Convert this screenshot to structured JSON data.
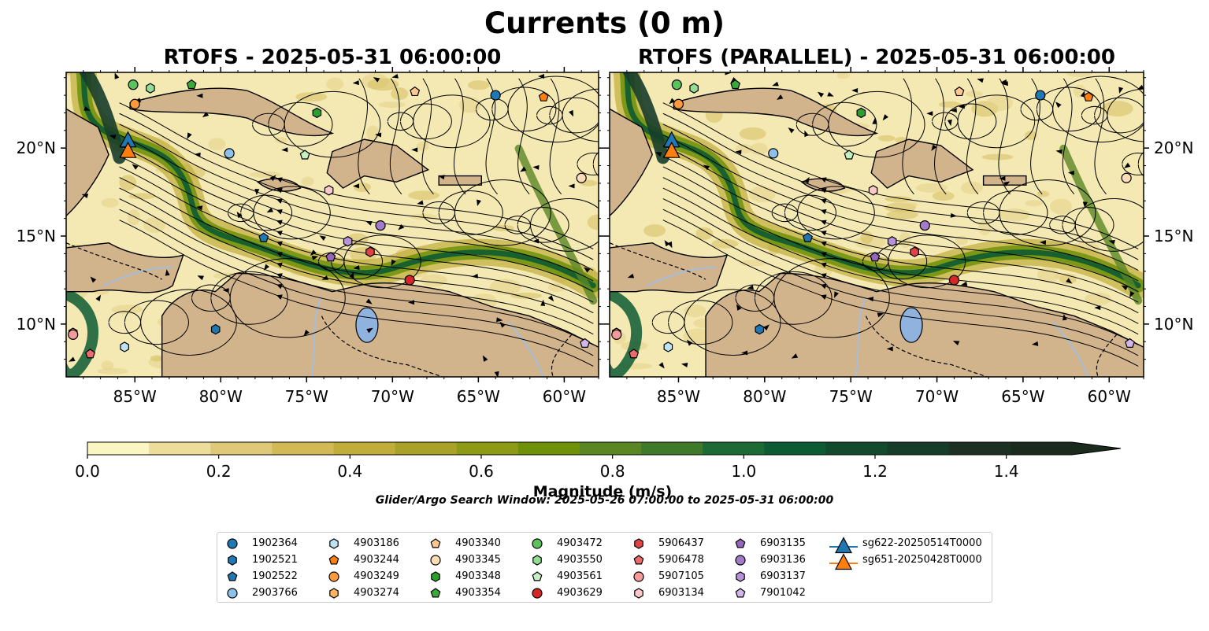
{
  "title": "Currents (0 m)",
  "panels": [
    {
      "title": "RTOFS - 2025-05-31 06:00:00"
    },
    {
      "title": "RTOFS (PARALLEL) - 2025-05-31 06:00:00"
    }
  ],
  "map": {
    "extent": {
      "lon": [
        -89.0,
        -58.0
      ],
      "lat": [
        7.0,
        24.3
      ]
    },
    "lon_ticks": [
      {
        "value": -85,
        "label": "85°W"
      },
      {
        "value": -80,
        "label": "80°W"
      },
      {
        "value": -75,
        "label": "75°W"
      },
      {
        "value": -70,
        "label": "70°W"
      },
      {
        "value": -65,
        "label": "65°W"
      },
      {
        "value": -60,
        "label": "60°W"
      }
    ],
    "lat_ticks": [
      {
        "value": 20,
        "label": "20°N"
      },
      {
        "value": 15,
        "label": "15°N"
      },
      {
        "value": 10,
        "label": "10°N"
      }
    ],
    "colors": {
      "land": "#d2b48c",
      "water_bg": "#f4e9b2",
      "lake": "#8fb3de",
      "river": "#a6bddb"
    }
  },
  "colorbar": {
    "label": "Magnitude (m/s)",
    "range": [
      0.0,
      1.5
    ],
    "extend": "max",
    "ticks": [
      "0.0",
      "0.2",
      "0.4",
      "0.6",
      "0.8",
      "1.0",
      "1.2",
      "1.4"
    ],
    "colors": [
      "#fbf5c1",
      "#ecde9a",
      "#dfc979",
      "#d3b856",
      "#c1ad3a",
      "#a9a128",
      "#8d9a13",
      "#6f9009",
      "#5a8624",
      "#3f7a2a",
      "#1c6b35",
      "#0d5b32",
      "#124a2d",
      "#163d2a",
      "#1c3024",
      "#1a2a1c"
    ]
  },
  "search_window": "Glider/Argo Search Window: 2025-05-26 07:00:00 to 2025-05-31 06:00:00",
  "legend": [
    {
      "label": "1902364",
      "marker": "circle",
      "color": "#1f77b4"
    },
    {
      "label": "1902521",
      "marker": "hexagon",
      "color": "#1f77b4"
    },
    {
      "label": "1902522",
      "marker": "pentagon",
      "color": "#1f77b4"
    },
    {
      "label": "2903766",
      "marker": "circle",
      "color": "#8dc1e8"
    },
    {
      "label": "4903186",
      "marker": "hexagon",
      "color": "#bfe2f6"
    },
    {
      "label": "4903244",
      "marker": "pentagon",
      "color": "#ff7f0e"
    },
    {
      "label": "4903249",
      "marker": "circle",
      "color": "#ff9a3c"
    },
    {
      "label": "4903274",
      "marker": "hexagon",
      "color": "#ffb266"
    },
    {
      "label": "4903340",
      "marker": "pentagon",
      "color": "#ffc890"
    },
    {
      "label": "4903345",
      "marker": "circle",
      "color": "#ffdcb8"
    },
    {
      "label": "4903348",
      "marker": "hexagon",
      "color": "#2ca02c"
    },
    {
      "label": "4903354",
      "marker": "pentagon",
      "color": "#3aa93a"
    },
    {
      "label": "4903472",
      "marker": "circle",
      "color": "#5cc35c"
    },
    {
      "label": "4903550",
      "marker": "hexagon",
      "color": "#95dc95"
    },
    {
      "label": "4903561",
      "marker": "pentagon",
      "color": "#c4f0c4"
    },
    {
      "label": "4903629",
      "marker": "circle",
      "color": "#d62728"
    },
    {
      "label": "5906437",
      "marker": "hexagon",
      "color": "#e04344"
    },
    {
      "label": "5906478",
      "marker": "pentagon",
      "color": "#eb6b6c"
    },
    {
      "label": "5907105",
      "marker": "circle",
      "color": "#f49a9a"
    },
    {
      "label": "6903134",
      "marker": "hexagon",
      "color": "#fcc8c8"
    },
    {
      "label": "6903135",
      "marker": "pentagon",
      "color": "#9467bd"
    },
    {
      "label": "6903136",
      "marker": "circle",
      "color": "#a27bcb"
    },
    {
      "label": "6903137",
      "marker": "hexagon",
      "color": "#b792d8"
    },
    {
      "label": "7901042",
      "marker": "pentagon",
      "color": "#d3b6ec"
    },
    {
      "label": "sg622-20250514T0000",
      "marker": "triangle",
      "color": "#1f77b4"
    },
    {
      "label": "sg651-20250428T0000",
      "marker": "triangle",
      "color": "#ff7f0e"
    }
  ],
  "markers": [
    {
      "id": "1902364",
      "lon": -64.0,
      "lat": 23.0
    },
    {
      "id": "1902521",
      "lon": -80.3,
      "lat": 9.7
    },
    {
      "id": "1902522",
      "lon": -77.5,
      "lat": 14.9
    },
    {
      "id": "2903766",
      "lon": -79.5,
      "lat": 19.7
    },
    {
      "id": "4903186",
      "lon": -85.6,
      "lat": 8.7
    },
    {
      "id": "4903244",
      "lon": -61.2,
      "lat": 22.9
    },
    {
      "id": "4903249",
      "lon": -85.0,
      "lat": 22.5
    },
    {
      "id": "4903274",
      "lon": -88.6,
      "lat": 9.5
    },
    {
      "id": "4903340",
      "lon": -68.7,
      "lat": 23.2
    },
    {
      "id": "4903345",
      "lon": -59.0,
      "lat": 18.3
    },
    {
      "id": "4903348",
      "lon": -74.4,
      "lat": 22.0
    },
    {
      "id": "4903354",
      "lon": -81.7,
      "lat": 23.6
    },
    {
      "id": "4903472",
      "lon": -85.1,
      "lat": 23.6
    },
    {
      "id": "4903550",
      "lon": -84.1,
      "lat": 23.4
    },
    {
      "id": "4903561",
      "lon": -75.1,
      "lat": 19.6
    },
    {
      "id": "4903629",
      "lon": -69.0,
      "lat": 12.5
    },
    {
      "id": "5906437",
      "lon": -71.3,
      "lat": 14.1
    },
    {
      "id": "5906478",
      "lon": -87.6,
      "lat": 8.3
    },
    {
      "id": "5907105",
      "lon": -88.6,
      "lat": 9.4
    },
    {
      "id": "6903134",
      "lon": -73.7,
      "lat": 17.6
    },
    {
      "id": "6903135",
      "lon": -73.6,
      "lat": 13.8
    },
    {
      "id": "6903136",
      "lon": -70.7,
      "lat": 15.6
    },
    {
      "id": "6903137",
      "lon": -72.6,
      "lat": 14.7
    },
    {
      "id": "7901042",
      "lon": -58.8,
      "lat": 8.9
    },
    {
      "id": "sg622-20250514T0000",
      "lon": -85.4,
      "lat": 20.4
    },
    {
      "id": "sg651-20250428T0000",
      "lon": -85.4,
      "lat": 19.8
    }
  ]
}
